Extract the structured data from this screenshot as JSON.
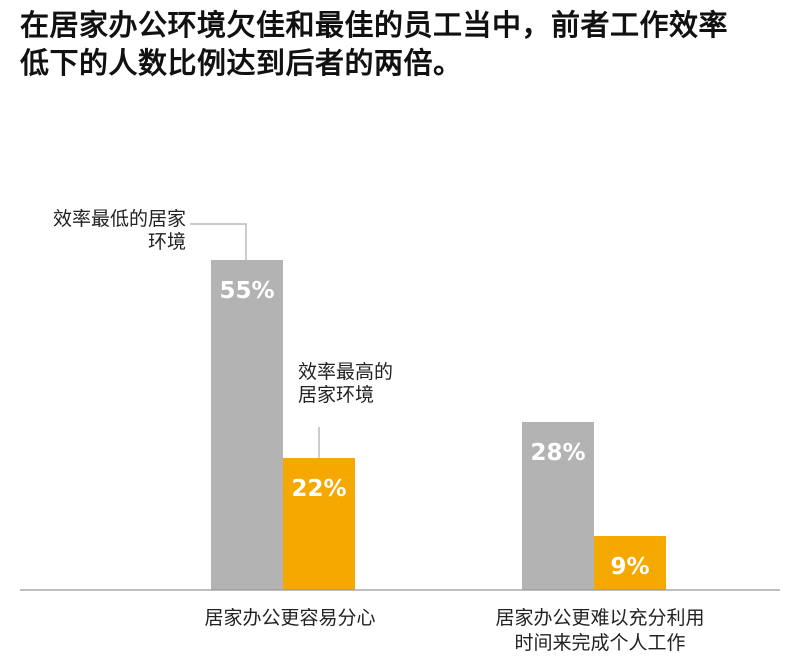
{
  "title": {
    "line1": "在居家办公环境欠佳和最佳的员工当中，前者工作效率",
    "line2": "低下的人数比例达到后者的两倍。"
  },
  "chart_data": {
    "type": "bar",
    "title": "在居家办公环境欠佳和最佳的员工当中，前者工作效率低下的人数比例达到后者的两倍。",
    "categories": [
      {
        "line1": "居家办公更容易分心",
        "line2": ""
      },
      {
        "line1": "居家办公更难以充分利用",
        "line2": "时间来完成个人工作"
      }
    ],
    "series": [
      {
        "name_line1": "效率最低的居家",
        "name_line2": "环境",
        "color": "#b3b3b3",
        "values": [
          55,
          28
        ],
        "labels": [
          "55%",
          "28%"
        ]
      },
      {
        "name_line1": "效率最高的",
        "name_line2": "居家环境",
        "color": "#f4a800",
        "values": [
          22,
          9
        ],
        "labels": [
          "22%",
          "9%"
        ]
      }
    ],
    "ylim": [
      0,
      60
    ],
    "unit": "%",
    "grid": false,
    "legend": "direct-labels"
  }
}
